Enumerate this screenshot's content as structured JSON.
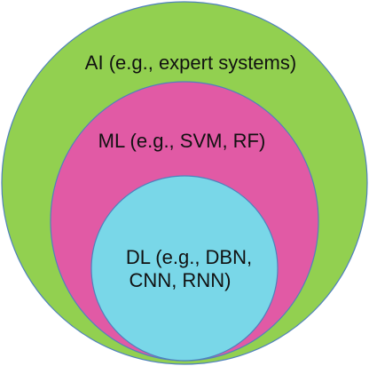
{
  "diagram": {
    "outer": {
      "label": "AI (e.g., expert systems)",
      "fill": "#92D050",
      "stroke": "#4F81BD"
    },
    "middle": {
      "label": "ML (e.g., SVM, RF)",
      "fill": "#E15AA5",
      "stroke": "#4F81BD"
    },
    "inner": {
      "label_line1": "DL (e.g., DBN,",
      "label_line2": "CNN, RNN)",
      "fill": "#79D7E8",
      "stroke": "#4F81BD"
    }
  }
}
